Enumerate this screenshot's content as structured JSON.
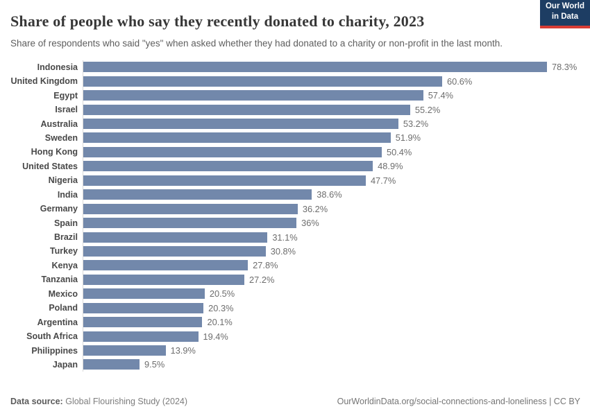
{
  "header": {
    "title": "Share of people who say they recently donated to charity, 2023",
    "subtitle": "Share of respondents who said \"yes\" when asked whether they had donated to a charity or non-profit in the last month.",
    "logo": {
      "line1": "Our World",
      "line2": "in Data"
    }
  },
  "chart_data": {
    "type": "bar",
    "orientation": "horizontal",
    "title": "Share of people who say they recently donated to charity, 2023",
    "xlabel": "",
    "ylabel": "",
    "xlim": [
      0,
      78.3
    ],
    "grid": false,
    "legend": "none",
    "categories": [
      "Indonesia",
      "United Kingdom",
      "Egypt",
      "Israel",
      "Australia",
      "Sweden",
      "Hong Kong",
      "United States",
      "Nigeria",
      "India",
      "Germany",
      "Spain",
      "Brazil",
      "Turkey",
      "Kenya",
      "Tanzania",
      "Mexico",
      "Poland",
      "Argentina",
      "South Africa",
      "Philippines",
      "Japan"
    ],
    "values": [
      78.3,
      60.6,
      57.4,
      55.2,
      53.2,
      51.9,
      50.4,
      48.9,
      47.7,
      38.6,
      36.2,
      36,
      31.1,
      30.8,
      27.8,
      27.2,
      20.5,
      20.3,
      20.1,
      19.4,
      13.9,
      9.5
    ],
    "value_labels": [
      "78.3%",
      "60.6%",
      "57.4%",
      "55.2%",
      "53.2%",
      "51.9%",
      "50.4%",
      "48.9%",
      "47.7%",
      "38.6%",
      "36.2%",
      "36%",
      "31.1%",
      "30.8%",
      "27.8%",
      "27.2%",
      "20.5%",
      "20.3%",
      "20.1%",
      "19.4%",
      "13.9%",
      "9.5%"
    ]
  },
  "colors": {
    "bar": "#7288ab",
    "axis_line": "#d8d8d8",
    "logo_background": "#1d3d63",
    "logo_stripe": "#d73c34"
  },
  "footer": {
    "datasource_label": "Data source:",
    "datasource_value": "Global Flourishing Study (2024)",
    "link_text": "OurWorldinData.org/social-connections-and-loneliness | CC BY"
  }
}
